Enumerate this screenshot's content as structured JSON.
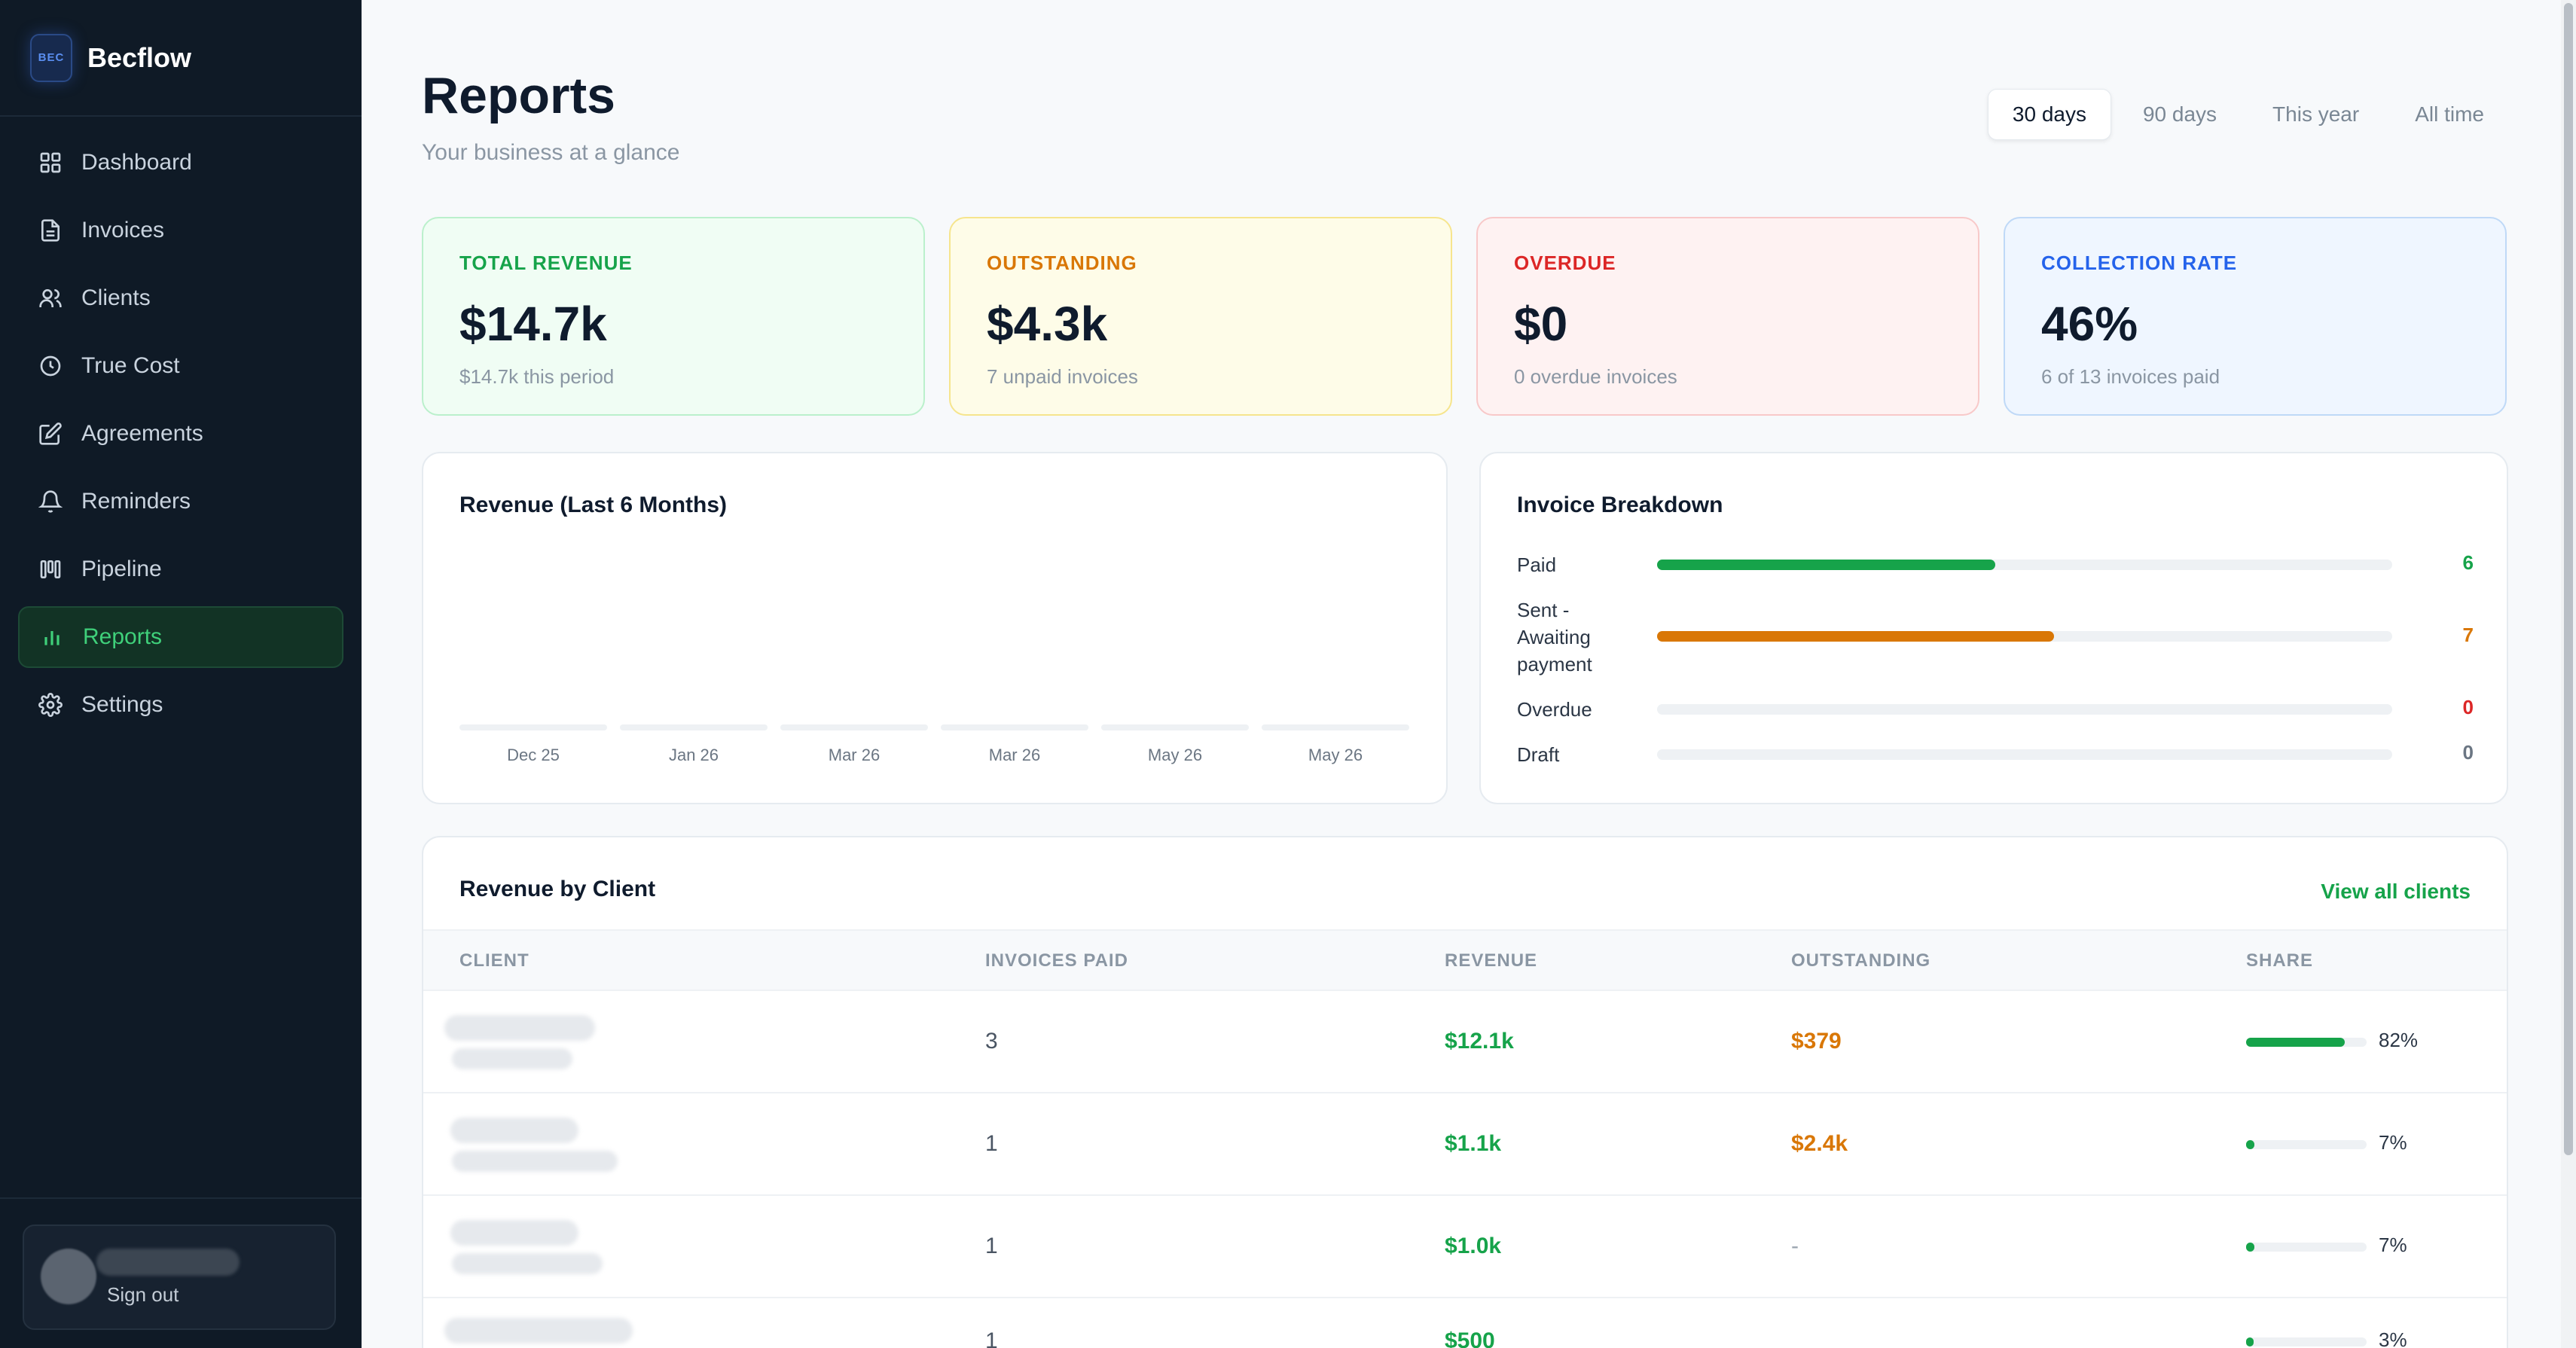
{
  "app": {
    "logo_text": "BEC",
    "name": "Becflow"
  },
  "nav": [
    {
      "label": "Dashboard",
      "icon": "dashboard-icon"
    },
    {
      "label": "Invoices",
      "icon": "invoice-icon"
    },
    {
      "label": "Clients",
      "icon": "clients-icon"
    },
    {
      "label": "True Cost",
      "icon": "clock-icon"
    },
    {
      "label": "Agreements",
      "icon": "edit-icon"
    },
    {
      "label": "Reminders",
      "icon": "bell-icon"
    },
    {
      "label": "Pipeline",
      "icon": "pipeline-icon"
    },
    {
      "label": "Reports",
      "icon": "bar-chart-icon",
      "active": true
    },
    {
      "label": "Settings",
      "icon": "gear-icon"
    }
  ],
  "footer": {
    "signout_label": "Sign out"
  },
  "header": {
    "title": "Reports",
    "subtitle": "Your business at a glance"
  },
  "ranges": [
    "30 days",
    "90 days",
    "This year",
    "All time"
  ],
  "stats": [
    {
      "label": "TOTAL REVENUE",
      "value": "$14.7k",
      "note": "$14.7k this period",
      "accent": "#16a34a",
      "bg": "#f0fdf4",
      "border": "#bbf0cc"
    },
    {
      "label": "OUTSTANDING",
      "value": "$4.3k",
      "note": "7 unpaid invoices",
      "accent": "#d97706",
      "bg": "#fefce8",
      "border": "#f6e58d"
    },
    {
      "label": "OVERDUE",
      "value": "$0",
      "note": "0 overdue invoices",
      "accent": "#dc2626",
      "bg": "#fef2f2",
      "border": "#f8c9c9"
    },
    {
      "label": "COLLECTION RATE",
      "value": "46%",
      "note": "6 of 13 invoices paid",
      "accent": "#2563eb",
      "bg": "#eff6ff",
      "border": "#bfd9f7"
    }
  ],
  "revenue_chart": {
    "title": "Revenue (Last 6 Months)",
    "chart_data": {
      "type": "bar",
      "categories": [
        "Dec 25",
        "Jan 26",
        "Mar 26",
        "Mar 26",
        "May 26",
        "May 26"
      ],
      "values": [
        0,
        0,
        0,
        0,
        0,
        0
      ]
    }
  },
  "breakdown": {
    "title": "Invoice Breakdown",
    "rows": [
      {
        "label": "Paid",
        "count": "6",
        "fraction": 0.46,
        "color": "#16a34a"
      },
      {
        "label": "Sent - Awaiting payment",
        "count": "7",
        "fraction": 0.54,
        "color": "#d97706"
      },
      {
        "label": "Overdue",
        "count": "0",
        "fraction": 0,
        "color": "#dc2626"
      },
      {
        "label": "Draft",
        "count": "0",
        "fraction": 0,
        "color": "#6b7683"
      }
    ]
  },
  "clients": {
    "title": "Revenue by Client",
    "view_all": "View all clients",
    "columns": [
      "CLIENT",
      "INVOICES PAID",
      "REVENUE",
      "OUTSTANDING",
      "SHARE"
    ],
    "rows": [
      {
        "paid": "3",
        "revenue": "$12.1k",
        "outstanding": "$379",
        "share_pct": "82%",
        "share": 0.82
      },
      {
        "paid": "1",
        "revenue": "$1.1k",
        "outstanding": "$2.4k",
        "share_pct": "7%",
        "share": 0.07
      },
      {
        "paid": "1",
        "revenue": "$1.0k",
        "outstanding": "-",
        "share_pct": "7%",
        "share": 0.07
      },
      {
        "paid": "1",
        "revenue": "$500",
        "outstanding": "",
        "share_pct": "3%",
        "share": 0.03
      }
    ]
  }
}
